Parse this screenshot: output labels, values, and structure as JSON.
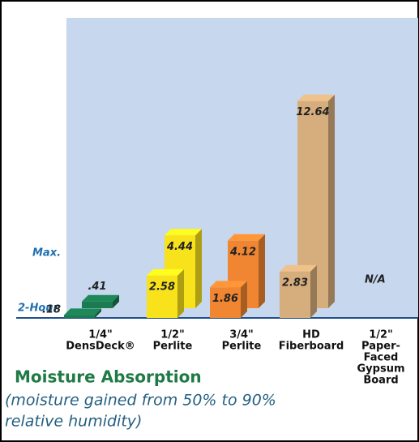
{
  "chart_data": {
    "type": "bar3d",
    "title": "Moisture Absorption",
    "subtitle": [
      "(moisture gained from 50% to 90%",
      "relative humidity)"
    ],
    "categories": [
      [
        "1/4\"",
        "DensDeck®"
      ],
      [
        "1/2\"",
        "Perlite"
      ],
      [
        "3/4\"",
        "Perlite"
      ],
      [
        "HD",
        "Fiberboard"
      ],
      [
        "1/2\"",
        "Paper-",
        "Faced",
        "Gypsum",
        "Board"
      ]
    ],
    "colors": [
      "#1b7a4f",
      "#f7e21b",
      "#f08632",
      "#d6ad7c",
      "#999999"
    ],
    "series": [
      {
        "name": "2-Hour",
        "values": [
          0.18,
          2.58,
          1.86,
          2.83,
          null
        ],
        "value_labels": [
          ".18",
          "2.58",
          "1.86",
          "2.83",
          null
        ]
      },
      {
        "name": "Max.",
        "values": [
          0.41,
          4.44,
          4.12,
          12.64,
          null
        ],
        "value_labels": [
          ".41",
          "4.44",
          "4.12",
          "12.64",
          "N/A"
        ]
      }
    ]
  }
}
